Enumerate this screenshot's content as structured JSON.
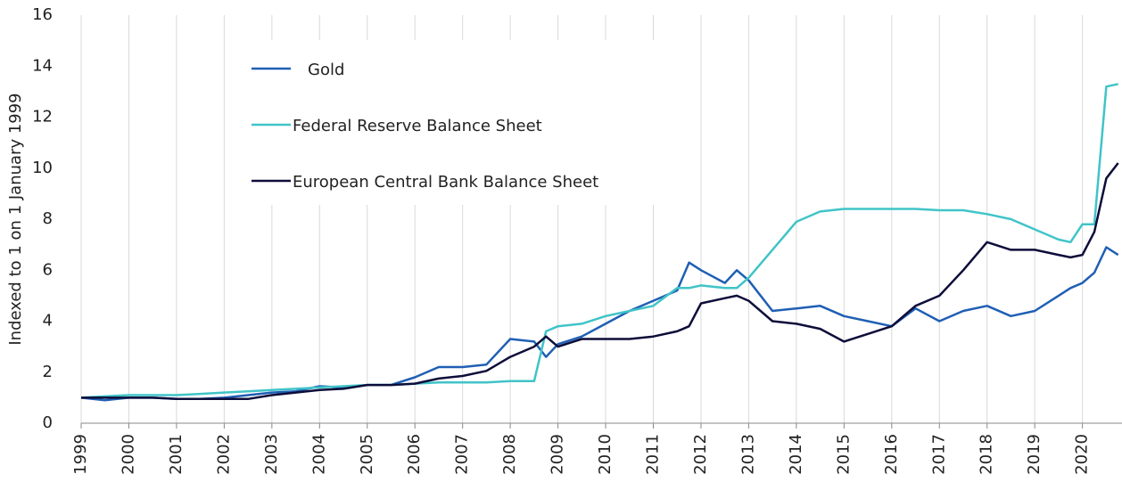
{
  "chart_data": {
    "type": "line",
    "y_label": "Indexed to 1 on 1 January 1999",
    "x": [
      1999,
      1999.5,
      2000,
      2000.5,
      2001,
      2001.5,
      2002,
      2002.5,
      2003,
      2003.5,
      2004,
      2004.5,
      2005,
      2005.5,
      2006,
      2006.5,
      2007,
      2007.5,
      2008,
      2008.5,
      2008.75,
      2009,
      2009.5,
      2010,
      2010.5,
      2011,
      2011.5,
      2011.75,
      2012,
      2012.5,
      2012.75,
      2013,
      2013.5,
      2014,
      2014.5,
      2015,
      2015.5,
      2016,
      2016.5,
      2017,
      2017.5,
      2018,
      2018.5,
      2019,
      2019.5,
      2019.75,
      2020,
      2020.25,
      2020.5,
      2020.75
    ],
    "series": [
      {
        "name": "Gold",
        "color": "#1f5fb4",
        "values": [
          1.0,
          0.9,
          1.0,
          1.0,
          0.95,
          0.95,
          1.0,
          1.1,
          1.2,
          1.25,
          1.45,
          1.4,
          1.5,
          1.5,
          1.8,
          2.2,
          2.2,
          2.3,
          3.3,
          3.2,
          2.6,
          3.1,
          3.4,
          3.9,
          4.4,
          4.8,
          5.2,
          6.3,
          6.0,
          5.5,
          6.0,
          5.6,
          4.4,
          4.5,
          4.6,
          4.2,
          4.0,
          3.8,
          4.5,
          4.0,
          4.4,
          4.6,
          4.2,
          4.4,
          5.0,
          5.3,
          5.5,
          5.9,
          6.9,
          6.6
        ]
      },
      {
        "name": "Federal Reserve Balance Sheet",
        "color": "#40c4c8",
        "values": [
          1.0,
          1.05,
          1.1,
          1.1,
          1.1,
          1.15,
          1.2,
          1.25,
          1.3,
          1.35,
          1.4,
          1.45,
          1.5,
          1.5,
          1.55,
          1.6,
          1.6,
          1.6,
          1.65,
          1.65,
          3.6,
          3.8,
          3.9,
          4.2,
          4.4,
          4.6,
          5.3,
          5.3,
          5.4,
          5.3,
          5.3,
          5.7,
          6.8,
          7.9,
          8.3,
          8.4,
          8.4,
          8.4,
          8.4,
          8.35,
          8.35,
          8.2,
          8.0,
          7.6,
          7.2,
          7.1,
          7.8,
          7.8,
          13.2,
          13.3
        ]
      },
      {
        "name": "European Central Bank Balance Sheet",
        "color": "#0d0d3a",
        "values": [
          1.0,
          1.0,
          1.0,
          1.0,
          0.95,
          0.95,
          0.95,
          0.95,
          1.1,
          1.2,
          1.3,
          1.35,
          1.5,
          1.5,
          1.55,
          1.75,
          1.85,
          2.05,
          2.6,
          3.0,
          3.4,
          3.0,
          3.3,
          3.3,
          3.3,
          3.4,
          3.6,
          3.8,
          4.7,
          4.9,
          5.0,
          4.8,
          4.0,
          3.9,
          3.7,
          3.2,
          3.5,
          3.8,
          4.6,
          5.0,
          6.0,
          7.1,
          6.8,
          6.8,
          6.6,
          6.5,
          6.6,
          7.5,
          9.6,
          10.2
        ]
      }
    ],
    "xlim": [
      1999,
      2020.83
    ],
    "xticks": [
      1999,
      2000,
      2001,
      2002,
      2003,
      2004,
      2005,
      2006,
      2007,
      2008,
      2009,
      2010,
      2011,
      2012,
      2013,
      2014,
      2015,
      2016,
      2017,
      2018,
      2019,
      2020
    ],
    "ylim": [
      0,
      16
    ],
    "yticks": [
      0,
      2,
      4,
      6,
      8,
      10,
      12,
      14,
      16
    ],
    "grid": "x",
    "legend": "upper left"
  }
}
